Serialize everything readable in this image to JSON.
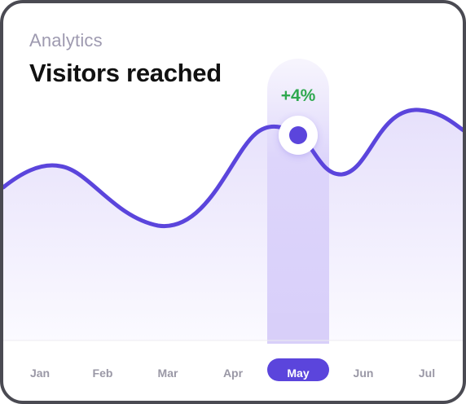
{
  "header": {
    "subtitle": "Analytics",
    "title": "Visitors reached"
  },
  "highlight": {
    "change": "+4%",
    "month": "May"
  },
  "months": [
    "Jan",
    "Feb",
    "Mar",
    "Apr",
    "May",
    "Jun",
    "Jul"
  ],
  "selected_index": 4,
  "colors": {
    "accent": "#5b45dc",
    "line": "#5b45dc",
    "area_fill": "#ebe6fb",
    "highlight_band": "#e3dcfb",
    "positive": "#2fa84f",
    "border": "#4a4a52"
  }
}
